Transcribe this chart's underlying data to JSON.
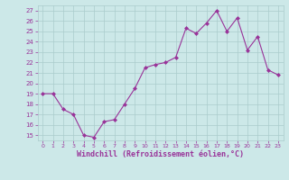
{
  "x": [
    0,
    1,
    2,
    3,
    4,
    5,
    6,
    7,
    8,
    9,
    10,
    11,
    12,
    13,
    14,
    15,
    16,
    17,
    18,
    19,
    20,
    21,
    22,
    23
  ],
  "y": [
    19.0,
    19.0,
    17.5,
    17.0,
    15.0,
    14.8,
    16.3,
    16.5,
    18.0,
    19.5,
    21.5,
    21.8,
    22.0,
    22.5,
    25.3,
    24.8,
    25.8,
    27.0,
    25.0,
    26.3,
    23.2,
    24.5,
    21.3,
    20.8
  ],
  "line_color": "#993399",
  "marker": "D",
  "marker_size": 2,
  "bg_color": "#cce8e8",
  "grid_color": "#aacccc",
  "xlabel": "Windchill (Refroidissement éolien,°C)",
  "xlabel_color": "#993399",
  "tick_color": "#993399",
  "ylim": [
    14.5,
    27.5
  ],
  "yticks": [
    15,
    16,
    17,
    18,
    19,
    20,
    21,
    22,
    23,
    24,
    25,
    26,
    27
  ],
  "xlim": [
    -0.5,
    23.5
  ],
  "figsize": [
    3.2,
    2.0
  ],
  "dpi": 100
}
